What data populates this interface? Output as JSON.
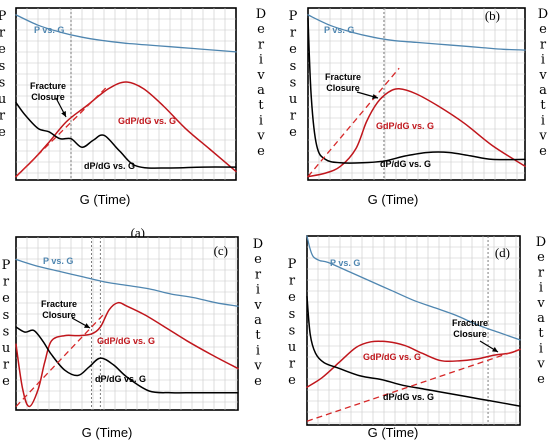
{
  "colors": {
    "pressure": "#4f86b0",
    "gdpdg": "#c0161c",
    "dpdg": "#000000",
    "closure_line": "#d62728",
    "grid": "#c8c8c8"
  },
  "chart_data": [
    {
      "type": "line",
      "panel_label": "(a)",
      "xlabel": "G (Time)",
      "left_axis_label": "Pressure",
      "right_axis_label": "Derivative",
      "grid": true,
      "series": [
        {
          "name": "P vs. G",
          "key": "pressure",
          "x": [
            0,
            1,
            2,
            3,
            4,
            5,
            6,
            7,
            8,
            9,
            10
          ],
          "y": [
            96,
            90,
            86,
            83,
            81,
            79.5,
            78.5,
            77.5,
            76.5,
            75.5,
            74.5
          ]
        },
        {
          "name": "GdP/dG vs. G",
          "key": "gdpdg",
          "x": [
            0,
            0.8,
            1.5,
            2.3,
            3.2,
            4.2,
            5,
            5.8,
            6.7,
            7.7,
            8.8,
            10
          ],
          "y": [
            2,
            12,
            22,
            34,
            43,
            53,
            57,
            53,
            43,
            30,
            18,
            5
          ]
        },
        {
          "name": "dP/dG vs. G",
          "key": "dpdg",
          "x": [
            0,
            0.4,
            1,
            1.5,
            2,
            2.5,
            3,
            3.5,
            4,
            4.7,
            5.5,
            7,
            8.5,
            10
          ],
          "y": [
            45,
            38,
            30,
            28,
            24,
            24,
            19,
            23,
            26,
            17,
            8,
            7,
            7.5,
            7.5
          ]
        }
      ],
      "closure_line": {
        "x": [
          0,
          4.2
        ],
        "y": [
          2,
          55
        ]
      },
      "closure_time": 2.5,
      "annotations": {
        "pressure": "P vs. G",
        "gdpdg": "GdP/dG vs. G",
        "dpdg": "dP/dG vs. G",
        "closure": "Fracture\nClosure"
      }
    },
    {
      "type": "line",
      "panel_label": "(b)",
      "xlabel": "G (Time)",
      "left_axis_label": "Pressure",
      "right_axis_label": "Derivative",
      "grid": true,
      "series": [
        {
          "name": "P vs. G",
          "key": "pressure",
          "x": [
            0,
            1,
            2,
            3,
            4,
            5,
            6,
            7,
            8,
            9,
            10
          ],
          "y": [
            96,
            90,
            86,
            83,
            81,
            80,
            79,
            78,
            77,
            76,
            75.5
          ]
        },
        {
          "name": "GdP/dG vs. G",
          "key": "gdpdg",
          "x": [
            0,
            0.8,
            1.5,
            2.2,
            2.7,
            3.2,
            3.7,
            4.2,
            5,
            6,
            7.2,
            8.5,
            10
          ],
          "y": [
            2,
            4,
            8,
            18,
            34,
            45,
            51,
            53,
            50,
            43,
            33,
            20,
            8
          ]
        },
        {
          "name": "dP/dG vs. G",
          "key": "dpdg",
          "x": [
            0,
            0.15,
            0.4,
            0.8,
            1.5,
            2.5,
            3.5,
            4.5,
            5.5,
            6.5,
            7.5,
            8.5,
            10
          ],
          "y": [
            94,
            48,
            20,
            12,
            10,
            10,
            11,
            14,
            16,
            16,
            14,
            12,
            12
          ]
        }
      ],
      "closure_line": {
        "x": [
          0,
          4.2
        ],
        "y": [
          2,
          65
        ]
      },
      "closure_time": 3.5,
      "annotations": {
        "pressure": "P vs. G",
        "gdpdg": "GdP/dG vs. G",
        "dpdg": "dP/dG vs. G",
        "closure": "Fracture\nClosure"
      }
    },
    {
      "type": "line",
      "panel_label": "(c)",
      "xlabel": "G (Time)",
      "left_axis_label": "Pressure",
      "right_axis_label": "Derivative",
      "grid": true,
      "series": [
        {
          "name": "P vs. G",
          "key": "pressure",
          "x": [
            0,
            1,
            2,
            3,
            4,
            5,
            6,
            7,
            8,
            9,
            10
          ],
          "y": [
            87,
            83,
            80,
            77,
            74,
            72,
            70,
            67,
            65,
            62,
            60
          ]
        },
        {
          "name": "GdP/dG vs. G",
          "key": "gdpdg",
          "x": [
            0,
            0.3,
            0.6,
            1,
            1.3,
            1.6,
            2.2,
            2.8,
            3.4,
            3.8,
            4.2,
            4.6,
            5,
            5.8,
            6.7,
            7.7,
            8.8,
            10
          ],
          "y": [
            38,
            12,
            2,
            12,
            28,
            40,
            43,
            43,
            44,
            48,
            58,
            62,
            60,
            55,
            48,
            40,
            32,
            24
          ]
        },
        {
          "name": "dP/dG vs. G",
          "key": "dpdg",
          "x": [
            0,
            0.4,
            0.8,
            1.2,
            1.6,
            2.2,
            2.8,
            3.3,
            3.8,
            4.4,
            5,
            6,
            7,
            8,
            9,
            10
          ],
          "y": [
            48,
            45,
            46,
            40,
            32,
            23,
            20,
            25,
            30,
            26,
            19,
            11,
            10,
            10,
            10,
            10
          ]
        }
      ],
      "closure_line": {
        "x": [
          0,
          4
        ],
        "y": [
          2,
          56
        ]
      },
      "closure_time": 3.4,
      "closure_time_2": 3.8,
      "annotations": {
        "pressure": "P vs. G",
        "gdpdg": "GdP/dG vs. G",
        "dpdg": "dP/dG vs. G",
        "closure": "Fracture\nClosure"
      }
    },
    {
      "type": "line",
      "panel_label": "(d)",
      "xlabel": "G (Time)",
      "left_axis_label": "Pressure",
      "right_axis_label": "Derivative",
      "grid": true,
      "series": [
        {
          "name": "P vs. G",
          "key": "pressure",
          "x": [
            0,
            0.15,
            0.3,
            0.6,
            1,
            2,
            3,
            4,
            5,
            6,
            7,
            8,
            9,
            10
          ],
          "y": [
            100,
            93,
            89,
            87,
            86,
            81,
            76,
            71,
            66,
            62,
            58,
            53,
            49,
            45
          ]
        },
        {
          "name": "GdP/dG vs. G",
          "key": "gdpdg",
          "x": [
            0,
            0.7,
            1.5,
            2.3,
            3,
            3.8,
            4.6,
            5.4,
            6.3,
            7.2,
            8,
            8.8,
            9.5,
            10
          ],
          "y": [
            20,
            25,
            33,
            41,
            44,
            44,
            42,
            38,
            34,
            34,
            35,
            37,
            38,
            40
          ]
        },
        {
          "name": "dP/dG vs. G",
          "key": "dpdg",
          "x": [
            0,
            0.15,
            0.4,
            0.8,
            1.5,
            2.5,
            3.5,
            4.5,
            5.5,
            6.5,
            7.5,
            8.5,
            10
          ],
          "y": [
            68,
            48,
            38,
            33,
            30,
            26,
            24,
            21,
            19,
            17,
            15,
            13,
            10
          ]
        }
      ],
      "closure_line": {
        "x": [
          0,
          10
        ],
        "y": [
          2,
          40
        ]
      },
      "closure_time": 8.5,
      "annotations": {
        "pressure": "P vs. G",
        "gdpdg": "GdP/dG vs. G",
        "dpdg": "dP/dG vs. G",
        "closure": "Fracture\nClosure"
      }
    }
  ]
}
